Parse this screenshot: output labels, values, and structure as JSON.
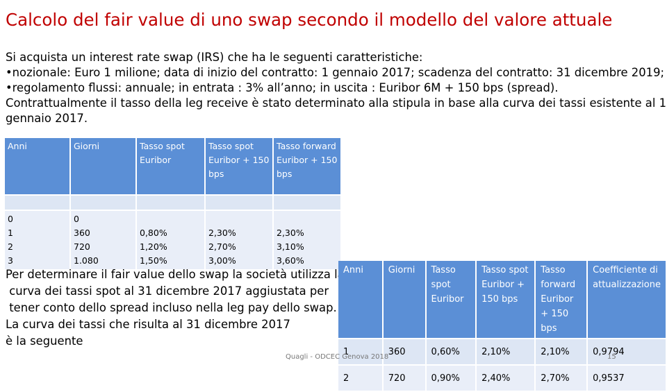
{
  "title": "Calcolo del fair value di uno swap secondo il modello del valore attuale",
  "intro": {
    "line1": "Si acquista un interest rate swap (IRS) che ha le seguenti caratteristiche:",
    "line2": "•nozionale: Euro 1 milione; data di inizio del contratto: 1 gennaio 2017; scadenza del contratto: 31 dicembre 2019;",
    "line3": "•regolamento flussi: annuale; in entrata : 3% all’anno; in uscita : Euribor 6M + 150 bps (spread).",
    "line4": "Contrattualmente il tasso della leg receive è stato determinato alla stipula in base alla curva dei tassi esistente al 1",
    "line5": "gennaio 2017."
  },
  "table1": {
    "headers": [
      "Anni",
      "Giorni",
      "Tasso spot Euribor",
      "Tasso spot Euribor + 150 bps",
      "Tasso forward Euribor + 150 bps"
    ],
    "rows": [
      {
        "anni": "0",
        "giorni": "0",
        "spot": "",
        "spot150": "",
        "fwd": ""
      },
      {
        "anni": "1",
        "giorni": "360",
        "spot": "0,80%",
        "spot150": "2,30%",
        "fwd": "2,30%"
      },
      {
        "anni": "2",
        "giorni": "720",
        "spot": "1,20%",
        "spot150": "2,70%",
        "fwd": "3,10%"
      },
      {
        "anni": "3",
        "giorni": "1.080",
        "spot": "1,50%",
        "spot150": "3,00%",
        "fwd": "3,60%"
      }
    ]
  },
  "para2": {
    "line1": "Per determinare il fair value dello swap la società utilizza la",
    "line2": " curva dei tassi spot al 31 dicembre 2017 aggiustata per",
    "line3": " tener conto dello spread incluso nella leg pay dello swap.",
    "line4": "La curva dei tassi che risulta al 31 dicembre 2017",
    "line5": "è la seguente"
  },
  "table2": {
    "headers": [
      "Anni",
      "Giorni",
      "Tasso spot Euribor",
      "Tasso spot Euribor + 150 bps",
      "Tasso forward Euribor + 150 bps",
      "Coefficiente di attualizzazione"
    ],
    "rows": [
      {
        "anni": "1",
        "giorni": "360",
        "spot": "0,60%",
        "spot150": "2,10%",
        "fwd": "2,10%",
        "coeff": "0,9794"
      },
      {
        "anni": "2",
        "giorni": "720",
        "spot": "0,90%",
        "spot150": "2,40%",
        "fwd": "2,70%",
        "coeff": "0,9537"
      }
    ]
  },
  "footer": "Quagli - ODCEC Genova 2018",
  "page_number": "15"
}
